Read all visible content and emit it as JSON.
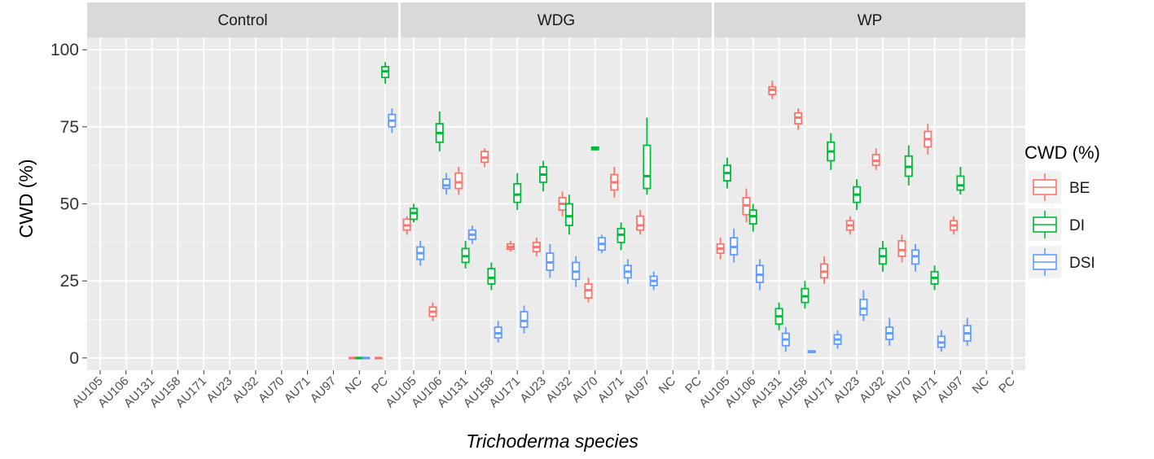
{
  "chart_data": {
    "type": "boxplot",
    "xlabel": "Trichoderma species",
    "ylabel": "CWD (%)",
    "ylim": [
      -4,
      104
    ],
    "yticks": [
      0,
      25,
      50,
      75,
      100
    ],
    "yticks_labels": [
      "0",
      "25",
      "50",
      "75",
      "100"
    ],
    "grid": true,
    "categories": [
      "AU105",
      "AU106",
      "AU131",
      "AU158",
      "AU171",
      "AU23",
      "AU32",
      "AU70",
      "AU71",
      "AU97",
      "NC",
      "PC"
    ],
    "legend": {
      "title": "CWD (%)",
      "position": "right",
      "entries": [
        {
          "name": "BE",
          "color": "#F8766D"
        },
        {
          "name": "DI",
          "color": "#00BA38"
        },
        {
          "name": "DSI",
          "color": "#619CFF"
        }
      ]
    },
    "panels": [
      {
        "name": "Control",
        "boxes": [
          {
            "cat": "NC",
            "series": "BE",
            "min": 0,
            "q1": 0,
            "median": 0,
            "q3": 0,
            "max": 0
          },
          {
            "cat": "NC",
            "series": "DI",
            "min": 0,
            "q1": 0,
            "median": 0,
            "q3": 0,
            "max": 0
          },
          {
            "cat": "NC",
            "series": "DSI",
            "min": 0,
            "q1": 0,
            "median": 0,
            "q3": 0,
            "max": 0
          },
          {
            "cat": "PC",
            "series": "BE",
            "min": 0,
            "q1": 0,
            "median": 0,
            "q3": 0,
            "max": 0
          },
          {
            "cat": "PC",
            "series": "DI",
            "min": 89,
            "q1": 91,
            "median": 93,
            "q3": 94.5,
            "max": 96
          },
          {
            "cat": "PC",
            "series": "DSI",
            "min": 73,
            "q1": 75,
            "median": 77,
            "q3": 79,
            "max": 81
          }
        ]
      },
      {
        "name": "WDG",
        "boxes": [
          {
            "cat": "AU105",
            "series": "BE",
            "min": 40,
            "q1": 41.5,
            "median": 43,
            "q3": 45,
            "max": 46
          },
          {
            "cat": "AU105",
            "series": "DI",
            "min": 44,
            "q1": 45,
            "median": 47,
            "q3": 48.5,
            "max": 50
          },
          {
            "cat": "AU105",
            "series": "DSI",
            "min": 30,
            "q1": 32,
            "median": 34,
            "q3": 36,
            "max": 38
          },
          {
            "cat": "AU106",
            "series": "BE",
            "min": 12,
            "q1": 13.5,
            "median": 15,
            "q3": 16.5,
            "max": 18
          },
          {
            "cat": "AU106",
            "series": "DI",
            "min": 67,
            "q1": 70,
            "median": 73,
            "q3": 76,
            "max": 80
          },
          {
            "cat": "AU106",
            "series": "DSI",
            "min": 53,
            "q1": 55,
            "median": 56,
            "q3": 58,
            "max": 60
          },
          {
            "cat": "AU131",
            "series": "BE",
            "min": 53,
            "q1": 55,
            "median": 57,
            "q3": 60,
            "max": 62
          },
          {
            "cat": "AU131",
            "series": "DI",
            "min": 29,
            "q1": 31,
            "median": 33,
            "q3": 35.5,
            "max": 38
          },
          {
            "cat": "AU131",
            "series": "DSI",
            "min": 37,
            "q1": 38.5,
            "median": 40,
            "q3": 41.5,
            "max": 43
          },
          {
            "cat": "AU158",
            "series": "BE",
            "min": 62,
            "q1": 63.5,
            "median": 65,
            "q3": 67,
            "max": 68
          },
          {
            "cat": "AU158",
            "series": "DI",
            "min": 22,
            "q1": 24,
            "median": 26,
            "q3": 29,
            "max": 31
          },
          {
            "cat": "AU158",
            "series": "DSI",
            "min": 5,
            "q1": 6.5,
            "median": 8,
            "q3": 10,
            "max": 12
          },
          {
            "cat": "AU171",
            "series": "BE",
            "min": 34.5,
            "q1": 35.3,
            "median": 36,
            "q3": 37,
            "max": 38
          },
          {
            "cat": "AU171",
            "series": "DI",
            "min": 48,
            "q1": 50.5,
            "median": 53,
            "q3": 56.5,
            "max": 60
          },
          {
            "cat": "AU171",
            "series": "DSI",
            "min": 8,
            "q1": 10,
            "median": 12,
            "q3": 15,
            "max": 17
          },
          {
            "cat": "AU23",
            "series": "BE",
            "min": 33,
            "q1": 34.5,
            "median": 36,
            "q3": 37.5,
            "max": 39
          },
          {
            "cat": "AU23",
            "series": "DI",
            "min": 54,
            "q1": 57,
            "median": 59.5,
            "q3": 62,
            "max": 64
          },
          {
            "cat": "AU23",
            "series": "DSI",
            "min": 26,
            "q1": 28.5,
            "median": 31,
            "q3": 34,
            "max": 37
          },
          {
            "cat": "AU32",
            "series": "BE",
            "min": 46,
            "q1": 48,
            "median": 50,
            "q3": 52,
            "max": 54
          },
          {
            "cat": "AU32",
            "series": "DI",
            "min": 40,
            "q1": 43,
            "median": 46,
            "q3": 50,
            "max": 53
          },
          {
            "cat": "AU32",
            "series": "DSI",
            "min": 23,
            "q1": 25.5,
            "median": 28,
            "q3": 31,
            "max": 33
          },
          {
            "cat": "AU70",
            "series": "BE",
            "min": 18,
            "q1": 19.5,
            "median": 22,
            "q3": 24,
            "max": 26
          },
          {
            "cat": "AU70",
            "series": "DI",
            "min": 67.3,
            "q1": 67.6,
            "median": 68,
            "q3": 68.4,
            "max": 68.7
          },
          {
            "cat": "AU70",
            "series": "DSI",
            "min": 34,
            "q1": 35,
            "median": 37,
            "q3": 39,
            "max": 40
          },
          {
            "cat": "AU71",
            "series": "BE",
            "min": 52,
            "q1": 54.5,
            "median": 57,
            "q3": 59.5,
            "max": 62
          },
          {
            "cat": "AU71",
            "series": "DI",
            "min": 35,
            "q1": 37.5,
            "median": 40,
            "q3": 42,
            "max": 44
          },
          {
            "cat": "AU71",
            "series": "DSI",
            "min": 24,
            "q1": 26,
            "median": 28,
            "q3": 30,
            "max": 32
          },
          {
            "cat": "AU97",
            "series": "BE",
            "min": 40,
            "q1": 41.5,
            "median": 43,
            "q3": 46,
            "max": 48
          },
          {
            "cat": "AU97",
            "series": "DI",
            "min": 53,
            "q1": 55,
            "median": 59,
            "q3": 69,
            "max": 78
          },
          {
            "cat": "AU97",
            "series": "DSI",
            "min": 22,
            "q1": 23.5,
            "median": 25,
            "q3": 26.5,
            "max": 28
          }
        ]
      },
      {
        "name": "WP",
        "boxes": [
          {
            "cat": "AU105",
            "series": "BE",
            "min": 32,
            "q1": 34,
            "median": 35.5,
            "q3": 37,
            "max": 39
          },
          {
            "cat": "AU105",
            "series": "DI",
            "min": 55,
            "q1": 57.5,
            "median": 60,
            "q3": 62.5,
            "max": 65
          },
          {
            "cat": "AU105",
            "series": "DSI",
            "min": 31,
            "q1": 33.5,
            "median": 36,
            "q3": 39,
            "max": 42
          },
          {
            "cat": "AU106",
            "series": "BE",
            "min": 44,
            "q1": 46.5,
            "median": 49.5,
            "q3": 52,
            "max": 55
          },
          {
            "cat": "AU106",
            "series": "DI",
            "min": 41,
            "q1": 43.5,
            "median": 46,
            "q3": 48,
            "max": 50
          },
          {
            "cat": "AU106",
            "series": "DSI",
            "min": 22,
            "q1": 24.5,
            "median": 27,
            "q3": 30,
            "max": 32
          },
          {
            "cat": "AU131",
            "series": "BE",
            "min": 84,
            "q1": 85.5,
            "median": 87,
            "q3": 88,
            "max": 90
          },
          {
            "cat": "AU131",
            "series": "DI",
            "min": 9,
            "q1": 11,
            "median": 13.5,
            "q3": 16,
            "max": 18
          },
          {
            "cat": "AU131",
            "series": "DSI",
            "min": 2,
            "q1": 4,
            "median": 6,
            "q3": 8,
            "max": 10
          },
          {
            "cat": "AU158",
            "series": "BE",
            "min": 74,
            "q1": 76,
            "median": 78,
            "q3": 79.5,
            "max": 81
          },
          {
            "cat": "AU158",
            "series": "DI",
            "min": 16,
            "q1": 18,
            "median": 20,
            "q3": 22.5,
            "max": 25
          },
          {
            "cat": "AU158",
            "series": "DSI",
            "min": 1.5,
            "q1": 1.8,
            "median": 2,
            "q3": 2.3,
            "max": 2.6
          },
          {
            "cat": "AU171",
            "series": "BE",
            "min": 24,
            "q1": 26,
            "median": 28,
            "q3": 30.5,
            "max": 33
          },
          {
            "cat": "AU171",
            "series": "DI",
            "min": 61,
            "q1": 64,
            "median": 67,
            "q3": 70,
            "max": 73
          },
          {
            "cat": "AU171",
            "series": "DSI",
            "min": 3,
            "q1": 4.5,
            "median": 6,
            "q3": 7.5,
            "max": 9
          },
          {
            "cat": "AU23",
            "series": "BE",
            "min": 40,
            "q1": 41.5,
            "median": 43,
            "q3": 44.5,
            "max": 46
          },
          {
            "cat": "AU23",
            "series": "DI",
            "min": 48,
            "q1": 50.5,
            "median": 53,
            "q3": 55.5,
            "max": 58
          },
          {
            "cat": "AU23",
            "series": "DSI",
            "min": 12,
            "q1": 14,
            "median": 16,
            "q3": 19,
            "max": 22
          },
          {
            "cat": "AU32",
            "series": "BE",
            "min": 61,
            "q1": 62.5,
            "median": 64,
            "q3": 66,
            "max": 68
          },
          {
            "cat": "AU32",
            "series": "DI",
            "min": 28,
            "q1": 30.5,
            "median": 33,
            "q3": 35.5,
            "max": 38
          },
          {
            "cat": "AU32",
            "series": "DSI",
            "min": 4,
            "q1": 6,
            "median": 8,
            "q3": 10,
            "max": 13
          },
          {
            "cat": "AU70",
            "series": "BE",
            "min": 31,
            "q1": 33,
            "median": 35,
            "q3": 38,
            "max": 40
          },
          {
            "cat": "AU70",
            "series": "DI",
            "min": 56,
            "q1": 59,
            "median": 62,
            "q3": 65.5,
            "max": 69
          },
          {
            "cat": "AU70",
            "series": "DSI",
            "min": 28,
            "q1": 30.5,
            "median": 33,
            "q3": 35,
            "max": 37
          },
          {
            "cat": "AU71",
            "series": "BE",
            "min": 66,
            "q1": 68.5,
            "median": 71,
            "q3": 73.5,
            "max": 76
          },
          {
            "cat": "AU71",
            "series": "DI",
            "min": 22,
            "q1": 24,
            "median": 26,
            "q3": 28,
            "max": 30
          },
          {
            "cat": "AU71",
            "series": "DSI",
            "min": 2,
            "q1": 3.5,
            "median": 5,
            "q3": 7,
            "max": 9
          },
          {
            "cat": "AU97",
            "series": "BE",
            "min": 40,
            "q1": 41.5,
            "median": 43,
            "q3": 44.5,
            "max": 46
          },
          {
            "cat": "AU97",
            "series": "DI",
            "min": 53,
            "q1": 54.5,
            "median": 56,
            "q3": 59,
            "max": 62
          },
          {
            "cat": "AU97",
            "series": "DSI",
            "min": 4,
            "q1": 5.5,
            "median": 8,
            "q3": 10.5,
            "max": 13
          }
        ]
      }
    ]
  }
}
